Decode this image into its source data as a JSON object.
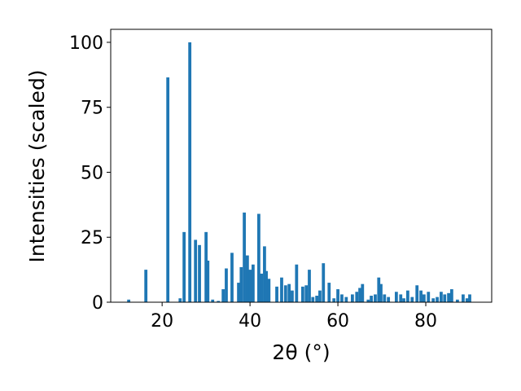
{
  "chart_data": {
    "type": "bar",
    "xlabel": "2θ (°)",
    "ylabel": "Intensities (scaled)",
    "color": "#1f77b4",
    "x": [
      12.4,
      16.3,
      21.3,
      24.1,
      25.0,
      26.3,
      27.6,
      28.5,
      30.0,
      30.4,
      31.5,
      32.8,
      33.9,
      34.6,
      35.9,
      37.4,
      38.0,
      38.7,
      39.4,
      40.0,
      40.7,
      42.0,
      42.6,
      43.3,
      43.7,
      44.3,
      46.1,
      47.2,
      48.1,
      48.9,
      49.6,
      50.6,
      52.0,
      52.8,
      53.5,
      54.3,
      55.2,
      55.9,
      56.7,
      58.0,
      59.1,
      60.0,
      60.9,
      61.9,
      63.3,
      64.3,
      65.0,
      65.6,
      66.9,
      67.6,
      68.5,
      69.3,
      69.8,
      70.6,
      71.5,
      73.3,
      74.3,
      75.0,
      75.9,
      76.9,
      78.0,
      78.9,
      79.6,
      80.6,
      81.7,
      82.6,
      83.5,
      84.3,
      85.2,
      85.9,
      87.2,
      88.5,
      89.4,
      90.0
    ],
    "values": [
      1,
      12.5,
      86.5,
      1.5,
      27,
      100,
      24,
      22,
      27,
      16,
      1,
      0.5,
      5,
      13,
      19,
      7.5,
      13.5,
      34.5,
      18,
      12.5,
      14.5,
      34,
      11,
      21.5,
      12,
      9,
      6,
      9.5,
      6.5,
      7,
      4.5,
      14.5,
      6,
      6.5,
      12.5,
      2,
      2.5,
      4.5,
      15,
      7.5,
      1.5,
      5,
      3,
      2,
      3,
      4,
      5.5,
      7,
      1,
      2.5,
      3,
      9.5,
      7,
      3,
      2,
      4,
      3,
      1.5,
      4.5,
      2,
      6.5,
      4.5,
      3,
      4,
      1.5,
      2,
      4,
      3,
      3.5,
      5,
      1,
      3,
      1.5,
      3
    ],
    "xlim": [
      8.3,
      95
    ],
    "ylim": [
      0,
      105
    ],
    "xticks": [
      20,
      40,
      60,
      80
    ],
    "yticks": [
      0,
      25,
      50,
      75,
      100
    ]
  }
}
